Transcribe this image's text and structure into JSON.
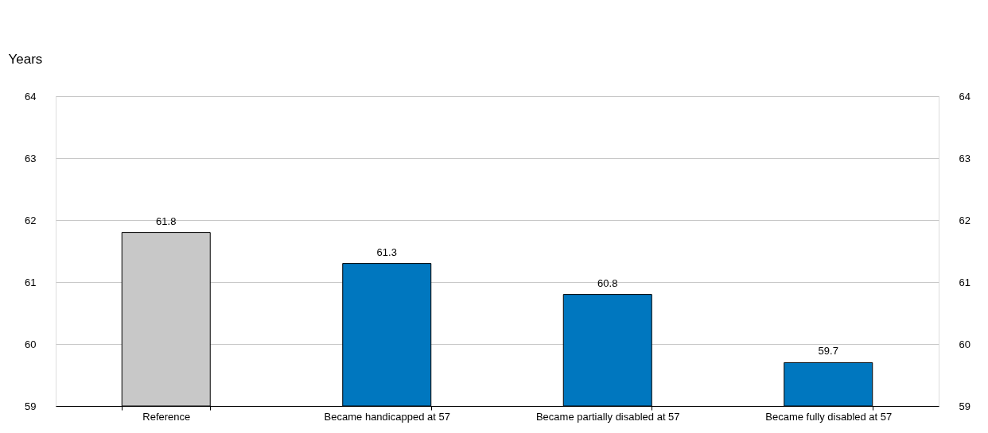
{
  "chart_data": {
    "type": "bar",
    "ylabel": "Years",
    "categories": [
      "Reference",
      "Became handicapped at 57",
      "Became partially disabled at 57",
      "Became fully disabled at 57"
    ],
    "values": [
      61.8,
      61.3,
      60.8,
      59.7
    ],
    "colors": [
      "#c8c8c8",
      "#0077bf",
      "#0077bf",
      "#0077bf"
    ],
    "ylim": [
      59,
      64
    ],
    "yticks": [
      59,
      60,
      61,
      62,
      63,
      64
    ],
    "y2lim": [
      59,
      64
    ],
    "y2ticks": [
      59,
      60,
      61,
      62,
      63,
      64
    ],
    "grid": "y",
    "data_labels": true
  }
}
